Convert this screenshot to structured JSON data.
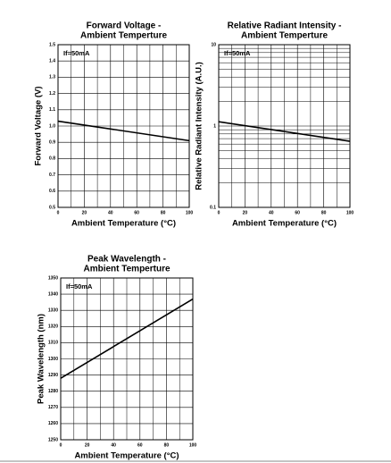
{
  "chart_data": [
    {
      "type": "line",
      "title": [
        "Forward Voltage -",
        "Ambient Temperture"
      ],
      "annotation": "If=50mA",
      "x_label": "Ambient Temperature (°C)",
      "y_label": "Forward Voltage (V)",
      "xlim": [
        0,
        100
      ],
      "xticks": [
        0,
        20,
        40,
        60,
        80,
        100
      ],
      "xminor": [
        10,
        30,
        50,
        70,
        90
      ],
      "ylim": [
        0.5,
        1.5
      ],
      "yticks": [
        0.5,
        0.6,
        0.7,
        0.8,
        0.9,
        {
          "value": 1,
          "label": "1.0"
        },
        1.1,
        1.2,
        1.3,
        1.4,
        1.5
      ],
      "grid": true,
      "x": [
        0,
        100
      ],
      "series": [
        {
          "color": "#000000",
          "values": [
            1.03,
            0.91
          ]
        }
      ]
    },
    {
      "type": "line",
      "title": [
        "Relative Radiant Intensity -",
        "Ambient Temperture"
      ],
      "annotation": "If=50mA",
      "x_label": "Ambient Temperature (°C)",
      "y_label": "Relative Radiant Intensity (A.U.)",
      "xlim": [
        0,
        100
      ],
      "xticks": [
        0,
        20,
        40,
        60,
        80,
        100
      ],
      "xminor": [
        10,
        30,
        50,
        70,
        90
      ],
      "ylog": true,
      "ylim": [
        0.1,
        10
      ],
      "yticks": [
        0.1,
        1,
        10
      ],
      "yminor": [
        0.2,
        0.3,
        0.4,
        0.5,
        0.6,
        0.7,
        0.8,
        0.9,
        2,
        3,
        4,
        5,
        6,
        7,
        8,
        9
      ],
      "grid": true,
      "x": [
        0,
        100
      ],
      "series": [
        {
          "color": "#000000",
          "values": [
            1.13,
            0.65
          ]
        }
      ]
    },
    {
      "type": "line",
      "title": [
        "Peak Wavelength -",
        "Ambient Temperture"
      ],
      "annotation": "If=50mA",
      "x_label": "Ambient Temperature (°C)",
      "y_label": "Peak Wavelength (nm)",
      "xlim": [
        0,
        100
      ],
      "xticks": [
        0,
        20,
        40,
        60,
        80,
        100
      ],
      "xminor": [
        10,
        30,
        50,
        70,
        90
      ],
      "ylim": [
        1250,
        1350
      ],
      "yticks": [
        1250,
        1260,
        1270,
        1280,
        1290,
        1300,
        1310,
        1320,
        1330,
        1340,
        1350
      ],
      "grid": true,
      "x": [
        0,
        100
      ],
      "series": [
        {
          "color": "#000000",
          "values": [
            1288,
            1337
          ]
        }
      ]
    }
  ]
}
